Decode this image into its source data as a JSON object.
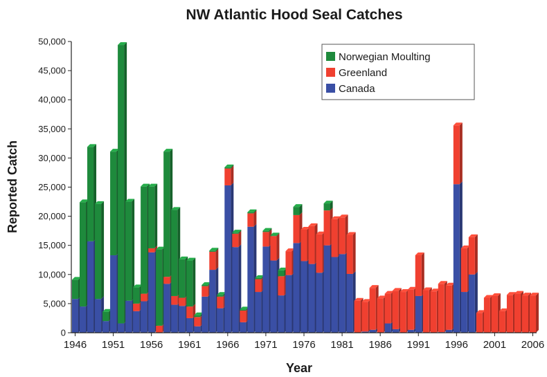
{
  "chart_data": {
    "type": "bar",
    "stacked": true,
    "title": "NW Atlantic Hood Seal Catches",
    "xlabel": "Year",
    "ylabel": "Reported Catch",
    "ylim": [
      0,
      50000
    ],
    "y_ticks": [
      "0",
      "5,000",
      "10,000",
      "15,000",
      "20,000",
      "25,000",
      "30,000",
      "35,000",
      "40,000",
      "45,000",
      "50,000"
    ],
    "x_ticks": [
      "1946",
      "1951",
      "1956",
      "1961",
      "1966",
      "1971",
      "1976",
      "1981",
      "1986",
      "1991",
      "1996",
      "2001",
      "2006"
    ],
    "legend_position": "top-right",
    "categories": [
      1946,
      1947,
      1948,
      1949,
      1950,
      1951,
      1952,
      1953,
      1954,
      1955,
      1956,
      1957,
      1958,
      1959,
      1960,
      1961,
      1962,
      1963,
      1964,
      1965,
      1966,
      1967,
      1968,
      1969,
      1970,
      1971,
      1972,
      1973,
      1974,
      1975,
      1976,
      1977,
      1978,
      1979,
      1980,
      1981,
      1982,
      1983,
      1984,
      1985,
      1986,
      1987,
      1988,
      1989,
      1990,
      1991,
      1992,
      1993,
      1994,
      1995,
      1996,
      1997,
      1998,
      1999,
      2000,
      2001,
      2002,
      2003,
      2004,
      2005,
      2006
    ],
    "series": [
      {
        "name": "Canada",
        "color": "#3a4fa5",
        "values": [
          5800,
          4500,
          15700,
          5800,
          2000,
          13300,
          1600,
          5500,
          3700,
          5400,
          13800,
          0,
          8400,
          4800,
          4600,
          2500,
          1100,
          6200,
          10800,
          4200,
          25300,
          14700,
          1800,
          18200,
          7000,
          14800,
          12400,
          6400,
          9900,
          15400,
          12300,
          11800,
          10300,
          15000,
          13000,
          13500,
          10100,
          0,
          200,
          500,
          0,
          1600,
          600,
          0,
          500,
          6300,
          0,
          0,
          100,
          500,
          25500,
          7000,
          10000,
          0,
          0,
          0,
          0,
          0,
          0,
          0,
          0
        ]
      },
      {
        "name": "Greenland",
        "color": "#f04030",
        "values": [
          0,
          0,
          0,
          0,
          0,
          0,
          0,
          0,
          1300,
          1300,
          700,
          1200,
          1200,
          1500,
          1400,
          2000,
          1600,
          1800,
          3100,
          2000,
          2900,
          2300,
          2000,
          2300,
          2200,
          2500,
          4200,
          3300,
          4100,
          4800,
          5400,
          6500,
          6600,
          6000,
          6500,
          6300,
          6700,
          5500,
          5100,
          7200,
          5900,
          5100,
          6600,
          7000,
          6900,
          7000,
          7300,
          7100,
          8300,
          7600,
          10100,
          7500,
          6400,
          3400,
          6000,
          6300,
          3700,
          6500,
          6700,
          6400,
          6400
        ]
      },
      {
        "name": "Norwegian Moulting",
        "color": "#1e8a3c",
        "values": [
          3300,
          17900,
          16200,
          16300,
          1600,
          17800,
          47800,
          17000,
          2800,
          18400,
          10600,
          13100,
          21500,
          14800,
          6600,
          7900,
          300,
          200,
          200,
          300,
          200,
          200,
          200,
          200,
          200,
          200,
          100,
          1000,
          0,
          1400,
          0,
          0,
          0,
          1200,
          0,
          0,
          0,
          0,
          0,
          0,
          0,
          0,
          0,
          0,
          0,
          0,
          0,
          0,
          0,
          0,
          0,
          0,
          0,
          0,
          0,
          0,
          0,
          0,
          0,
          0,
          0
        ]
      }
    ]
  }
}
